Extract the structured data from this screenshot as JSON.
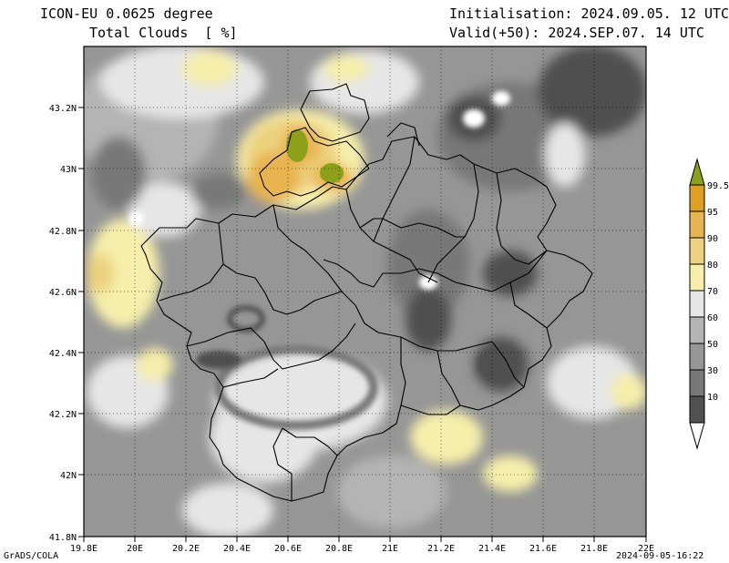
{
  "header": {
    "model": "ICON-EU 0.0625 degree",
    "field": "Total Clouds  [ %]",
    "init": "Initialisation: 2024.09.05. 12 UTC",
    "valid": "Valid(+50): 2024.SEP.07. 14 UTC"
  },
  "footer": {
    "credit": "GrADS/COLA",
    "timestamp": "2024-09-05-16:22"
  },
  "axes": {
    "lon_labels": [
      "19.8E",
      "20E",
      "20.2E",
      "20.4E",
      "20.6E",
      "20.8E",
      "21E",
      "21.2E",
      "21.4E",
      "21.6E",
      "21.8E",
      "22E"
    ],
    "lat_labels": [
      "43.2N",
      "43N",
      "42.8N",
      "42.6N",
      "42.4N",
      "42.2N",
      "42N",
      "41.8N"
    ]
  },
  "legend": {
    "levels": [
      "99.5",
      "95",
      "90",
      "80",
      "70",
      "60",
      "50",
      "30",
      "10"
    ],
    "colors": {
      "c10": "#ffffff",
      "c30": "#505050",
      "c50": "#787878",
      "c60": "#969696",
      "c70": "#b4b4b4",
      "c80": "#e6e6e6",
      "c90": "#f6eeaa",
      "c95": "#ecd27e",
      "c99": "#e8b450",
      "c100": "#dda024",
      "top": "#8ca019"
    }
  }
}
